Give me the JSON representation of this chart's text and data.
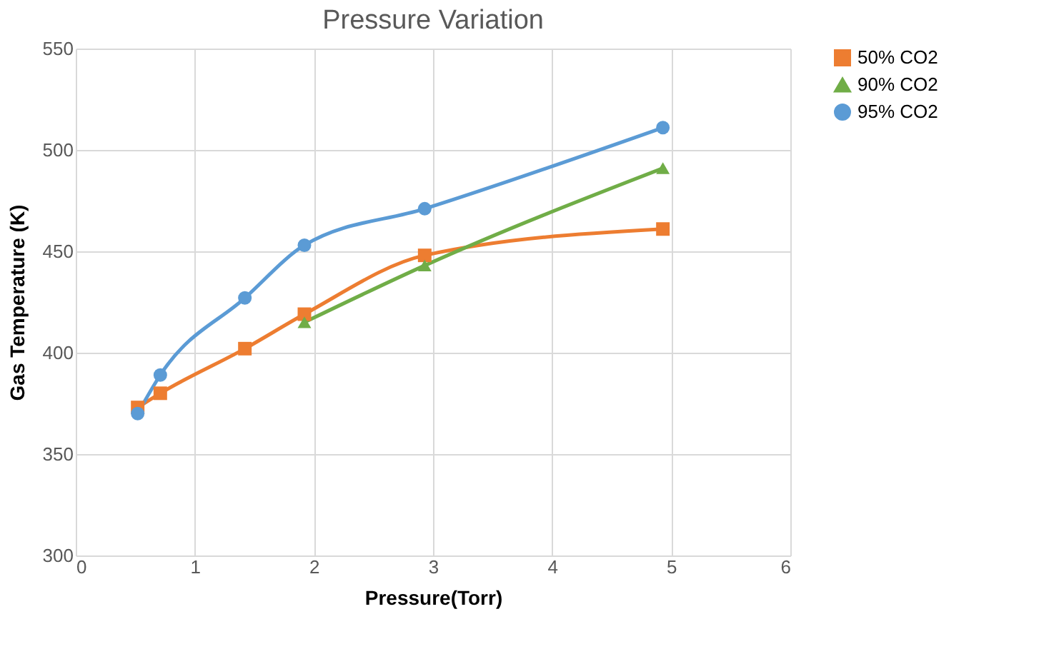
{
  "chart_data": {
    "type": "line",
    "title": "Pressure Variation",
    "xlabel": "Pressure(Torr)",
    "ylabel": "Gas Temperature (K)",
    "xlim": [
      0,
      6
    ],
    "xticks": [
      0,
      1,
      2,
      3,
      4,
      5,
      6
    ],
    "ylim": [
      300,
      550
    ],
    "yticks": [
      300,
      350,
      400,
      450,
      500,
      550
    ],
    "grid": true,
    "legend": "right",
    "line_style": "solid",
    "series": [
      {
        "name": "50% CO2",
        "color": "#ed7d31",
        "marker": "square",
        "x": [
          0.52,
          0.71,
          1.42,
          1.92,
          2.93,
          4.93
        ],
        "values": [
          373,
          380,
          402,
          419,
          448,
          461
        ]
      },
      {
        "name": "90% CO2",
        "color": "#70ad47",
        "marker": "triangle",
        "x": [
          1.92,
          2.93,
          4.93
        ],
        "values": [
          415,
          443,
          491
        ]
      },
      {
        "name": "95% CO2",
        "color": "#5b9bd5",
        "marker": "circle",
        "x": [
          0.52,
          0.71,
          1.42,
          1.92,
          2.93,
          4.93
        ],
        "values": [
          370,
          389,
          427,
          453,
          471,
          511
        ]
      }
    ]
  }
}
